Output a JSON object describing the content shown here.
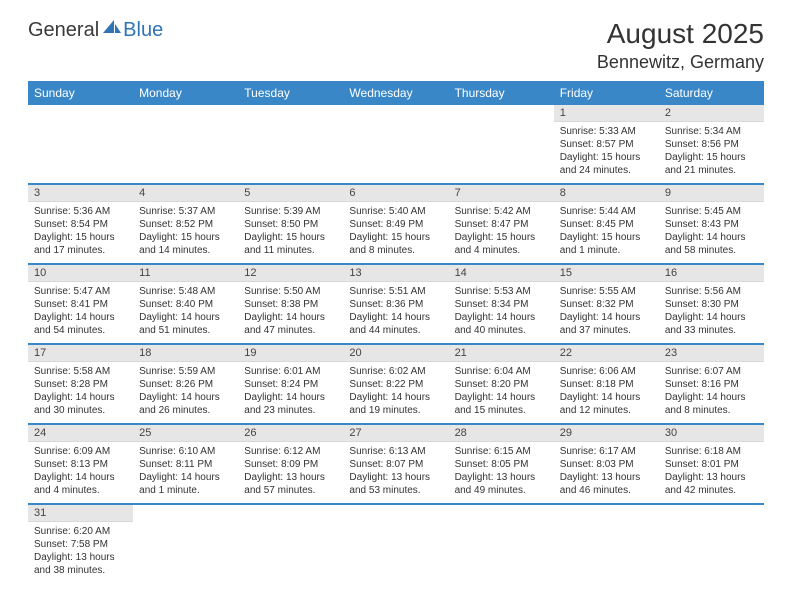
{
  "brand": {
    "part1": "General",
    "part2": "Blue"
  },
  "title": "August 2025",
  "location": "Bennewitz, Germany",
  "colors": {
    "headerBlue": "#3a87c7",
    "grayBar": "#e6e6e6",
    "text": "#333333",
    "logoBlue": "#2f74b5"
  },
  "dayNames": [
    "Sunday",
    "Monday",
    "Tuesday",
    "Wednesday",
    "Thursday",
    "Friday",
    "Saturday"
  ],
  "weeks": [
    [
      {
        "empty": true
      },
      {
        "empty": true
      },
      {
        "empty": true
      },
      {
        "empty": true
      },
      {
        "empty": true
      },
      {
        "num": "1",
        "sunrise": "Sunrise: 5:33 AM",
        "sunset": "Sunset: 8:57 PM",
        "daylight": "Daylight: 15 hours and 24 minutes."
      },
      {
        "num": "2",
        "sunrise": "Sunrise: 5:34 AM",
        "sunset": "Sunset: 8:56 PM",
        "daylight": "Daylight: 15 hours and 21 minutes."
      }
    ],
    [
      {
        "num": "3",
        "sunrise": "Sunrise: 5:36 AM",
        "sunset": "Sunset: 8:54 PM",
        "daylight": "Daylight: 15 hours and 17 minutes."
      },
      {
        "num": "4",
        "sunrise": "Sunrise: 5:37 AM",
        "sunset": "Sunset: 8:52 PM",
        "daylight": "Daylight: 15 hours and 14 minutes."
      },
      {
        "num": "5",
        "sunrise": "Sunrise: 5:39 AM",
        "sunset": "Sunset: 8:50 PM",
        "daylight": "Daylight: 15 hours and 11 minutes."
      },
      {
        "num": "6",
        "sunrise": "Sunrise: 5:40 AM",
        "sunset": "Sunset: 8:49 PM",
        "daylight": "Daylight: 15 hours and 8 minutes."
      },
      {
        "num": "7",
        "sunrise": "Sunrise: 5:42 AM",
        "sunset": "Sunset: 8:47 PM",
        "daylight": "Daylight: 15 hours and 4 minutes."
      },
      {
        "num": "8",
        "sunrise": "Sunrise: 5:44 AM",
        "sunset": "Sunset: 8:45 PM",
        "daylight": "Daylight: 15 hours and 1 minute."
      },
      {
        "num": "9",
        "sunrise": "Sunrise: 5:45 AM",
        "sunset": "Sunset: 8:43 PM",
        "daylight": "Daylight: 14 hours and 58 minutes."
      }
    ],
    [
      {
        "num": "10",
        "sunrise": "Sunrise: 5:47 AM",
        "sunset": "Sunset: 8:41 PM",
        "daylight": "Daylight: 14 hours and 54 minutes."
      },
      {
        "num": "11",
        "sunrise": "Sunrise: 5:48 AM",
        "sunset": "Sunset: 8:40 PM",
        "daylight": "Daylight: 14 hours and 51 minutes."
      },
      {
        "num": "12",
        "sunrise": "Sunrise: 5:50 AM",
        "sunset": "Sunset: 8:38 PM",
        "daylight": "Daylight: 14 hours and 47 minutes."
      },
      {
        "num": "13",
        "sunrise": "Sunrise: 5:51 AM",
        "sunset": "Sunset: 8:36 PM",
        "daylight": "Daylight: 14 hours and 44 minutes."
      },
      {
        "num": "14",
        "sunrise": "Sunrise: 5:53 AM",
        "sunset": "Sunset: 8:34 PM",
        "daylight": "Daylight: 14 hours and 40 minutes."
      },
      {
        "num": "15",
        "sunrise": "Sunrise: 5:55 AM",
        "sunset": "Sunset: 8:32 PM",
        "daylight": "Daylight: 14 hours and 37 minutes."
      },
      {
        "num": "16",
        "sunrise": "Sunrise: 5:56 AM",
        "sunset": "Sunset: 8:30 PM",
        "daylight": "Daylight: 14 hours and 33 minutes."
      }
    ],
    [
      {
        "num": "17",
        "sunrise": "Sunrise: 5:58 AM",
        "sunset": "Sunset: 8:28 PM",
        "daylight": "Daylight: 14 hours and 30 minutes."
      },
      {
        "num": "18",
        "sunrise": "Sunrise: 5:59 AM",
        "sunset": "Sunset: 8:26 PM",
        "daylight": "Daylight: 14 hours and 26 minutes."
      },
      {
        "num": "19",
        "sunrise": "Sunrise: 6:01 AM",
        "sunset": "Sunset: 8:24 PM",
        "daylight": "Daylight: 14 hours and 23 minutes."
      },
      {
        "num": "20",
        "sunrise": "Sunrise: 6:02 AM",
        "sunset": "Sunset: 8:22 PM",
        "daylight": "Daylight: 14 hours and 19 minutes."
      },
      {
        "num": "21",
        "sunrise": "Sunrise: 6:04 AM",
        "sunset": "Sunset: 8:20 PM",
        "daylight": "Daylight: 14 hours and 15 minutes."
      },
      {
        "num": "22",
        "sunrise": "Sunrise: 6:06 AM",
        "sunset": "Sunset: 8:18 PM",
        "daylight": "Daylight: 14 hours and 12 minutes."
      },
      {
        "num": "23",
        "sunrise": "Sunrise: 6:07 AM",
        "sunset": "Sunset: 8:16 PM",
        "daylight": "Daylight: 14 hours and 8 minutes."
      }
    ],
    [
      {
        "num": "24",
        "sunrise": "Sunrise: 6:09 AM",
        "sunset": "Sunset: 8:13 PM",
        "daylight": "Daylight: 14 hours and 4 minutes."
      },
      {
        "num": "25",
        "sunrise": "Sunrise: 6:10 AM",
        "sunset": "Sunset: 8:11 PM",
        "daylight": "Daylight: 14 hours and 1 minute."
      },
      {
        "num": "26",
        "sunrise": "Sunrise: 6:12 AM",
        "sunset": "Sunset: 8:09 PM",
        "daylight": "Daylight: 13 hours and 57 minutes."
      },
      {
        "num": "27",
        "sunrise": "Sunrise: 6:13 AM",
        "sunset": "Sunset: 8:07 PM",
        "daylight": "Daylight: 13 hours and 53 minutes."
      },
      {
        "num": "28",
        "sunrise": "Sunrise: 6:15 AM",
        "sunset": "Sunset: 8:05 PM",
        "daylight": "Daylight: 13 hours and 49 minutes."
      },
      {
        "num": "29",
        "sunrise": "Sunrise: 6:17 AM",
        "sunset": "Sunset: 8:03 PM",
        "daylight": "Daylight: 13 hours and 46 minutes."
      },
      {
        "num": "30",
        "sunrise": "Sunrise: 6:18 AM",
        "sunset": "Sunset: 8:01 PM",
        "daylight": "Daylight: 13 hours and 42 minutes."
      }
    ],
    [
      {
        "num": "31",
        "sunrise": "Sunrise: 6:20 AM",
        "sunset": "Sunset: 7:58 PM",
        "daylight": "Daylight: 13 hours and 38 minutes."
      },
      {
        "empty": true
      },
      {
        "empty": true
      },
      {
        "empty": true
      },
      {
        "empty": true
      },
      {
        "empty": true
      },
      {
        "empty": true
      }
    ]
  ]
}
